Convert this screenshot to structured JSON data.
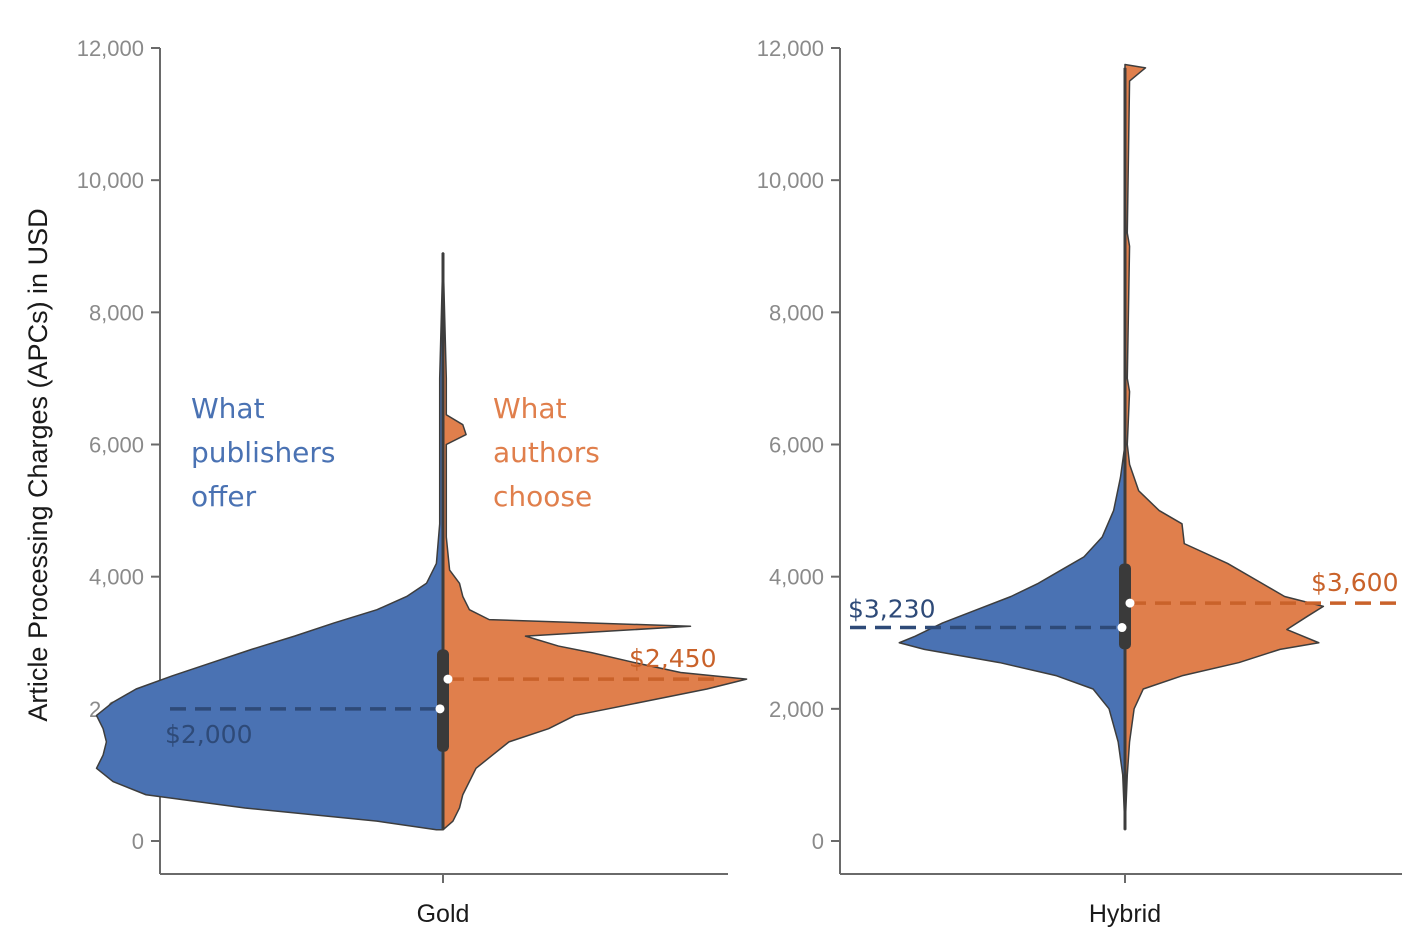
{
  "chart_data": {
    "type": "violin",
    "ylabel": "Article Processing Charges (APCs) in USD",
    "ylim": [
      0,
      12000
    ],
    "yticks": [
      0,
      2000,
      4000,
      6000,
      8000,
      10000,
      12000
    ],
    "ytick_labels": [
      "0",
      "2,000",
      "4,000",
      "6,000",
      "8,000",
      "10,000",
      "12,000"
    ],
    "categories": [
      "Gold",
      "Hybrid"
    ],
    "colors": {
      "offer": "#4a72b3",
      "choose": "#e07f4c",
      "offer_median": "#2e4a78",
      "choose_median": "#c9622a"
    },
    "series": [
      {
        "name": "What publishers offer",
        "side": "left"
      },
      {
        "name": "What authors choose",
        "side": "right"
      }
    ],
    "annotations": {
      "offer_lines": [
        "What",
        "publishers",
        "offer"
      ],
      "choose_lines": [
        "What",
        "authors",
        "choose"
      ]
    },
    "panels": [
      {
        "category": "Gold",
        "offer_median": 2000,
        "choose_median": 2450,
        "offer_median_label": "$2,000",
        "choose_median_label": "$2,450",
        "box": {
          "q1": 1350,
          "q3": 2900,
          "median": 2250,
          "whisker_low": 170,
          "whisker_high": 8900
        },
        "offer_density": [
          [
            170,
            0.02
          ],
          [
            300,
            0.2
          ],
          [
            500,
            0.6
          ],
          [
            700,
            0.9
          ],
          [
            900,
            1.0
          ],
          [
            1100,
            1.05
          ],
          [
            1300,
            1.03
          ],
          [
            1500,
            1.02
          ],
          [
            1700,
            1.03
          ],
          [
            1900,
            1.05
          ],
          [
            2100,
            1.0
          ],
          [
            2300,
            0.93
          ],
          [
            2500,
            0.82
          ],
          [
            2700,
            0.7
          ],
          [
            2900,
            0.58
          ],
          [
            3100,
            0.45
          ],
          [
            3300,
            0.33
          ],
          [
            3500,
            0.2
          ],
          [
            3700,
            0.11
          ],
          [
            3900,
            0.05
          ],
          [
            4200,
            0.02
          ],
          [
            4800,
            0.01
          ],
          [
            5500,
            0.01
          ],
          [
            6000,
            0.01
          ],
          [
            6800,
            0.01
          ],
          [
            7000,
            0.01
          ],
          [
            8900,
            0.0
          ]
        ],
        "choose_density": [
          [
            170,
            0.0
          ],
          [
            300,
            0.03
          ],
          [
            500,
            0.05
          ],
          [
            700,
            0.06
          ],
          [
            900,
            0.08
          ],
          [
            1100,
            0.1
          ],
          [
            1300,
            0.15
          ],
          [
            1500,
            0.2
          ],
          [
            1700,
            0.32
          ],
          [
            1900,
            0.4
          ],
          [
            2100,
            0.6
          ],
          [
            2300,
            0.8
          ],
          [
            2450,
            0.92
          ],
          [
            2550,
            0.72
          ],
          [
            2700,
            0.58
          ],
          [
            2850,
            0.45
          ],
          [
            2950,
            0.35
          ],
          [
            3100,
            0.25
          ],
          [
            3250,
            0.75
          ],
          [
            3350,
            0.14
          ],
          [
            3500,
            0.08
          ],
          [
            3700,
            0.06
          ],
          [
            3900,
            0.05
          ],
          [
            4100,
            0.02
          ],
          [
            4600,
            0.01
          ],
          [
            5000,
            0.01
          ],
          [
            5600,
            0.01
          ],
          [
            6000,
            0.01
          ],
          [
            6150,
            0.07
          ],
          [
            6300,
            0.06
          ],
          [
            6450,
            0.01
          ],
          [
            7000,
            0.01
          ],
          [
            8900,
            0.0
          ]
        ]
      },
      {
        "category": "Hybrid",
        "offer_median": 3230,
        "choose_median": 3600,
        "offer_median_label": "$3,230",
        "choose_median_label": "$3,600",
        "box": {
          "q1": 2900,
          "q3": 4200,
          "median": 3400,
          "whisker_low": 170,
          "whisker_high": 11700
        },
        "offer_density": [
          [
            170,
            0.0
          ],
          [
            1000,
            0.01
          ],
          [
            1500,
            0.03
          ],
          [
            2000,
            0.07
          ],
          [
            2300,
            0.14
          ],
          [
            2500,
            0.3
          ],
          [
            2700,
            0.55
          ],
          [
            2900,
            0.88
          ],
          [
            3000,
            0.99
          ],
          [
            3100,
            0.92
          ],
          [
            3300,
            0.8
          ],
          [
            3500,
            0.65
          ],
          [
            3700,
            0.5
          ],
          [
            3900,
            0.38
          ],
          [
            4100,
            0.28
          ],
          [
            4300,
            0.18
          ],
          [
            4600,
            0.1
          ],
          [
            5000,
            0.05
          ],
          [
            5500,
            0.02
          ],
          [
            6000,
            0.0
          ],
          [
            11700,
            0.0
          ]
        ],
        "choose_density": [
          [
            170,
            0.0
          ],
          [
            1000,
            0.01
          ],
          [
            1500,
            0.02
          ],
          [
            2000,
            0.04
          ],
          [
            2300,
            0.08
          ],
          [
            2500,
            0.25
          ],
          [
            2700,
            0.5
          ],
          [
            2900,
            0.68
          ],
          [
            3000,
            0.85
          ],
          [
            3200,
            0.71
          ],
          [
            3400,
            0.8
          ],
          [
            3550,
            0.87
          ],
          [
            3700,
            0.7
          ],
          [
            3900,
            0.6
          ],
          [
            4200,
            0.45
          ],
          [
            4500,
            0.26
          ],
          [
            4800,
            0.25
          ],
          [
            5000,
            0.15
          ],
          [
            5300,
            0.06
          ],
          [
            5700,
            0.02
          ],
          [
            6000,
            0.01
          ],
          [
            6800,
            0.02
          ],
          [
            7000,
            0.01
          ],
          [
            9000,
            0.02
          ],
          [
            9200,
            0.01
          ],
          [
            11500,
            0.02
          ],
          [
            11700,
            0.09
          ],
          [
            11750,
            0.0
          ]
        ]
      }
    ]
  }
}
